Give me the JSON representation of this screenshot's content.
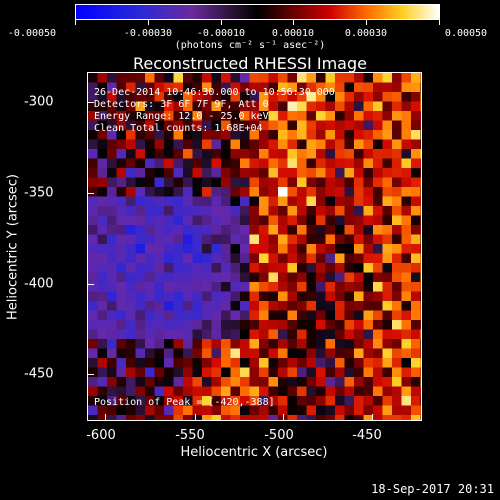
{
  "colorbar": {
    "tick_labels": [
      "-0.00050",
      "-0.00030",
      "-0.00010",
      "0.00010",
      "0.00030",
      "0.00050"
    ],
    "unit": "(photons cm⁻² s⁻¹ asec⁻²)",
    "range": [
      -0.0005,
      0.0005
    ],
    "colormap": "rainbow-to-hot"
  },
  "title": "Reconstructed RHESSI Image",
  "info": {
    "time": "26-Dec-2014 10:46:30.000 to 10:56:30.000",
    "detectors": "Detectors: 3F 6F 7F 9F, Att 0",
    "energy": "Energy Range: 12.0 - 25.0 keV",
    "clean": "Clean     Total counts: 1.68E+04",
    "peak": "Position of Peak = [-420,-388]"
  },
  "axes": {
    "x_title": "Heliocentric X (arcsec)",
    "y_title": "Heliocentric Y (arcsec)",
    "x_ticks": [
      "-600",
      "-550",
      "-500",
      "-450"
    ],
    "y_ticks": [
      "-300",
      "-350",
      "-400",
      "-450"
    ]
  },
  "footer": "18-Sep-2017 20:31"
}
